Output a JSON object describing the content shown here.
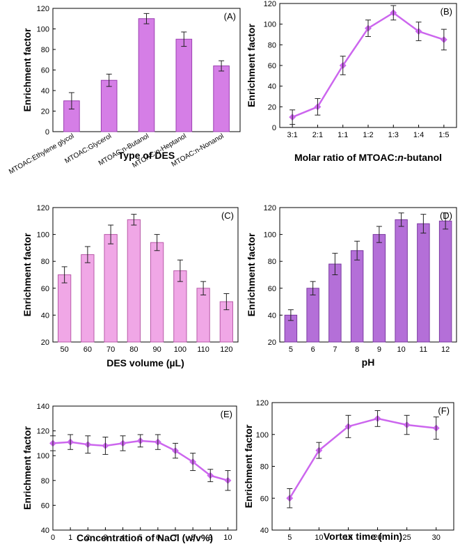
{
  "chart_data": [
    {
      "id": "A",
      "type": "bar",
      "panel_label": "(A)",
      "ylabel": "Enrichment factor",
      "xlabel": "Type of DES",
      "ylim": [
        0,
        120
      ],
      "yticks": [
        0,
        20,
        40,
        60,
        80,
        100,
        120
      ],
      "categories": [
        "MTOAC:Ethylene glycol",
        "MTOAC:Glycerol",
        "MTOAC:n-Butanol",
        "MTOAC:n-Heptanol",
        "MTOAC:n-Nonanol"
      ],
      "values": [
        30,
        50,
        110,
        90,
        64
      ],
      "errors": [
        8,
        6,
        5,
        7,
        5
      ],
      "color": "#d57ee6",
      "edge": "#9a3fb0",
      "rotate_ticks": true
    },
    {
      "id": "B",
      "type": "line",
      "panel_label": "(B)",
      "ylabel": "Enrichment factor",
      "xlabel": "Molar ratio of MTOAC:n-butanol",
      "ylim": [
        0,
        120
      ],
      "yticks": [
        0,
        20,
        40,
        60,
        80,
        100,
        120
      ],
      "categories": [
        "3:1",
        "2:1",
        "1:1",
        "1:2",
        "1:3",
        "1:4",
        "1:5"
      ],
      "values": [
        10,
        20,
        60,
        96,
        111,
        93,
        85
      ],
      "errors": [
        7,
        8,
        9,
        8,
        7,
        9,
        10
      ],
      "color": "#cc66ee"
    },
    {
      "id": "C",
      "type": "bar",
      "panel_label": "(C)",
      "ylabel": "Enrichment factor",
      "xlabel": "DES volume (µL)",
      "ylim": [
        20,
        120
      ],
      "yticks": [
        20,
        40,
        60,
        80,
        100,
        120
      ],
      "categories": [
        "50",
        "60",
        "70",
        "80",
        "90",
        "100",
        "110",
        "120"
      ],
      "values": [
        70,
        85,
        100,
        111,
        94,
        73,
        60,
        50
      ],
      "errors": [
        6,
        6,
        7,
        4,
        6,
        8,
        5,
        6
      ],
      "color": "#f0a7e6",
      "edge": "#b85aa8"
    },
    {
      "id": "D",
      "type": "bar",
      "panel_label": "(D)",
      "ylabel": "Enrichment factor",
      "xlabel": "pH",
      "ylim": [
        20,
        120
      ],
      "yticks": [
        20,
        40,
        60,
        80,
        100,
        120
      ],
      "categories": [
        "5",
        "6",
        "7",
        "8",
        "9",
        "10",
        "11",
        "12"
      ],
      "values": [
        40,
        60,
        78,
        88,
        100,
        111,
        108,
        110
      ],
      "errors": [
        4,
        5,
        8,
        7,
        6,
        5,
        7,
        6
      ],
      "color": "#b46fd8",
      "edge": "#7a3aa0"
    },
    {
      "id": "E",
      "type": "line",
      "panel_label": "(E)",
      "ylabel": "Enrichment factor",
      "xlabel": "Concentration of NaCl (w/v%)",
      "ylim": [
        40,
        140
      ],
      "yticks": [
        40,
        60,
        80,
        100,
        120,
        140
      ],
      "x": [
        0,
        1,
        2,
        3,
        4,
        5,
        6,
        7,
        8,
        9,
        10
      ],
      "xlim": [
        0,
        10.5
      ],
      "values": [
        110,
        111,
        109,
        108,
        110,
        112,
        111,
        104,
        95,
        84,
        80
      ],
      "errors": [
        6,
        6,
        7,
        7,
        6,
        5,
        6,
        6,
        7,
        5,
        8
      ],
      "color": "#cc66ee"
    },
    {
      "id": "F",
      "type": "line",
      "panel_label": "(F)",
      "ylabel": "Enrichment factor",
      "xlabel": "Vortex time (min)",
      "ylim": [
        40,
        120
      ],
      "yticks": [
        40,
        60,
        80,
        100,
        120
      ],
      "x": [
        5,
        10,
        15,
        20,
        25,
        30
      ],
      "xlim": [
        2,
        33
      ],
      "values": [
        60,
        90,
        105,
        110,
        106,
        104
      ],
      "errors": [
        6,
        5,
        7,
        5,
        6,
        7
      ],
      "color": "#cc66ee"
    }
  ]
}
